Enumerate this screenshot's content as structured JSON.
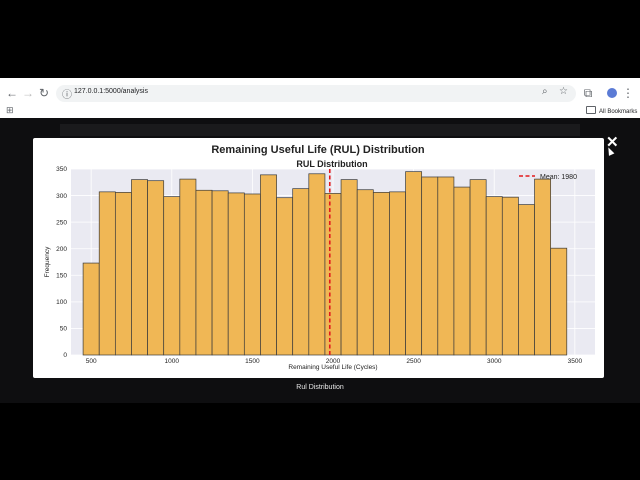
{
  "browser": {
    "url": "127.0.0.1:5000/analysis",
    "all_bookmarks": "All Bookmarks"
  },
  "modal": {
    "close_symbol": "✕",
    "caption": "Rul Distribution"
  },
  "chart_data": {
    "type": "bar",
    "suptitle": "Remaining Useful Life (RUL) Distribution",
    "title": "RUL Distribution",
    "xlabel": "Remaining Useful Life (Cycles)",
    "ylabel": "Frequency",
    "xlim": [
      375,
      3625
    ],
    "ylim": [
      0,
      350
    ],
    "xticks": [
      500,
      1000,
      1500,
      2000,
      2500,
      3000,
      3500
    ],
    "yticks": [
      0,
      50,
      100,
      150,
      200,
      250,
      300,
      350
    ],
    "bin_start": 450,
    "bin_width": 100,
    "values": [
      173,
      307,
      306,
      330,
      328,
      298,
      331,
      310,
      309,
      305,
      303,
      339,
      296,
      313,
      341,
      304,
      330,
      311,
      306,
      307,
      345,
      335,
      335,
      316,
      330,
      298,
      297,
      283,
      331,
      201
    ],
    "mean_line": {
      "value": 1980,
      "label": "Mean: 1980",
      "color": "#e31a1c"
    },
    "bar_color": "#f0b755",
    "edge_color": "#3a3a3a",
    "grid": true,
    "legend": "top-right"
  }
}
